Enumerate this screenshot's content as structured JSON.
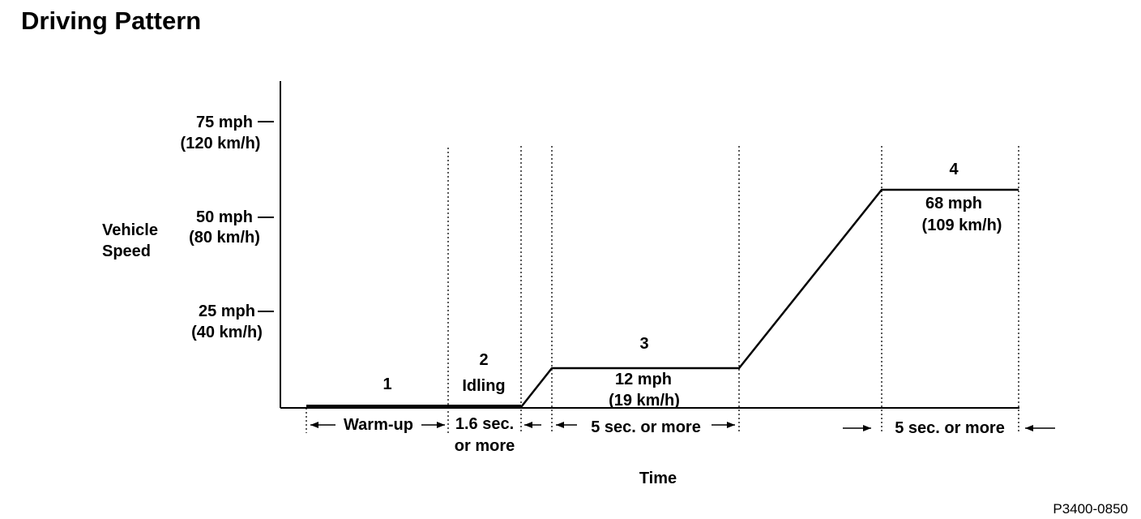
{
  "title": "Driving Pattern",
  "y_axis": {
    "label_line1": "Vehicle",
    "label_line2": "Speed",
    "ticks": [
      {
        "mph": "75 mph",
        "kmh": "(120 km/h)"
      },
      {
        "mph": "50 mph",
        "kmh": "(80 km/h)"
      },
      {
        "mph": "25 mph",
        "kmh": "(40 km/h)"
      }
    ]
  },
  "x_axis": {
    "label": "Time"
  },
  "phases": {
    "p1": {
      "number": "1",
      "duration": "Warm-up"
    },
    "p2": {
      "number": "2",
      "name": "Idling",
      "duration_line1": "1.6 sec.",
      "duration_line2": "or more"
    },
    "p3": {
      "number": "3",
      "speed_mph": "12 mph",
      "speed_kmh": "(19 km/h)",
      "duration": "5 sec. or more"
    },
    "p4": {
      "number": "4",
      "speed_mph": "68 mph",
      "speed_kmh": "(109 km/h)",
      "duration": "5 sec. or more"
    }
  },
  "figure_code": "P3400-0850"
}
